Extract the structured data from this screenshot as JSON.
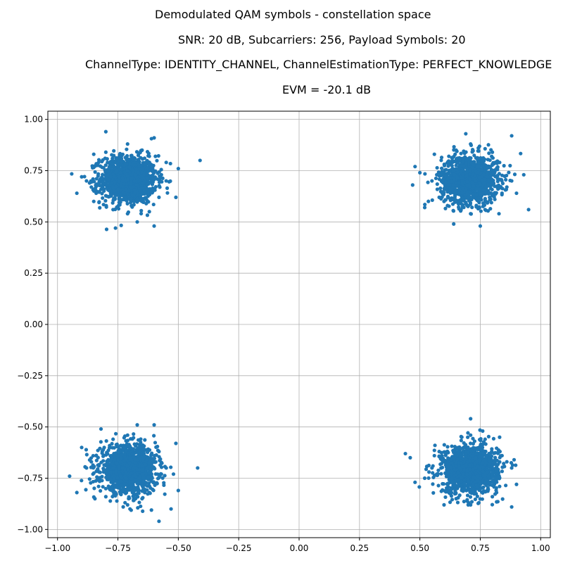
{
  "chart_data": {
    "type": "scatter",
    "title_lines": [
      "Demodulated QAM symbols - constellation space",
      "SNR: 20 dB, Subcarriers: 256, Payload Symbols: 20",
      "ChannelType: IDENTITY_CHANNEL, ChannelEstimationType: PERFECT_KNOWLEDGE",
      "EVM = -20.1 dB"
    ],
    "xlabel": "",
    "ylabel": "",
    "xlim": [
      -1.04,
      1.04
    ],
    "ylim": [
      -1.04,
      1.04
    ],
    "xticks": [
      -1.0,
      -0.75,
      -0.5,
      -0.25,
      0.0,
      0.25,
      0.5,
      0.75,
      1.0
    ],
    "yticks": [
      1.0,
      0.75,
      0.5,
      0.25,
      0.0,
      -0.25,
      -0.5,
      -0.75,
      -1.0
    ],
    "xtick_labels": [
      "−1.00",
      "−0.75",
      "−0.50",
      "−0.25",
      "0.00",
      "0.25",
      "0.50",
      "0.75",
      "1.00"
    ],
    "ytick_labels": [
      "1.00",
      "0.75",
      "0.50",
      "0.25",
      "0.00",
      "−0.25",
      "−0.50",
      "−0.75",
      "−1.00"
    ],
    "grid": true,
    "color": "#1f77b4",
    "series": [
      {
        "points": [
          [
            -0.707,
            0.707
          ],
          [
            -0.78,
            0.72
          ],
          [
            -0.65,
            0.69
          ],
          [
            -0.72,
            0.78
          ],
          [
            -0.69,
            0.63
          ],
          [
            -0.75,
            0.66
          ],
          [
            -0.66,
            0.76
          ],
          [
            -0.73,
            0.7
          ],
          [
            -0.68,
            0.73
          ],
          [
            -0.74,
            0.74
          ],
          [
            -0.8,
            0.94
          ],
          [
            -0.41,
            0.8
          ],
          [
            -0.92,
            0.64
          ],
          [
            -0.6,
            0.91
          ],
          [
            -0.76,
            0.47
          ],
          [
            -0.6,
            0.48
          ],
          [
            -0.85,
            0.83
          ],
          [
            -0.55,
            0.79
          ],
          [
            -0.62,
            0.55
          ],
          [
            -0.85,
            0.6
          ],
          [
            -0.71,
            0.88
          ],
          [
            -0.71,
            0.54
          ],
          [
            -0.55,
            0.7
          ],
          [
            -0.88,
            0.7
          ],
          [
            -0.65,
            0.85
          ],
          [
            -0.77,
            0.56
          ],
          [
            -0.58,
            0.62
          ],
          [
            -0.83,
            0.79
          ],
          [
            -0.62,
            0.82
          ],
          [
            -0.84,
            0.64
          ],
          [
            -0.5,
            0.76
          ],
          [
            -0.51,
            0.62
          ],
          [
            -0.9,
            0.72
          ],
          [
            -0.67,
            0.5
          ],
          [
            -0.8,
            0.84
          ],
          [
            -0.57,
            0.73
          ],
          [
            -0.86,
            0.67
          ],
          [
            -0.74,
            0.61
          ],
          [
            -0.68,
            0.81
          ],
          [
            -0.79,
            0.68
          ]
        ]
      },
      {
        "points": [
          [
            0.707,
            0.707
          ],
          [
            0.78,
            0.72
          ],
          [
            0.65,
            0.69
          ],
          [
            0.72,
            0.78
          ],
          [
            0.69,
            0.63
          ],
          [
            0.75,
            0.66
          ],
          [
            0.66,
            0.76
          ],
          [
            0.73,
            0.7
          ],
          [
            0.68,
            0.73
          ],
          [
            0.74,
            0.74
          ],
          [
            0.95,
            0.56
          ],
          [
            0.47,
            0.68
          ],
          [
            0.88,
            0.92
          ],
          [
            0.69,
            0.93
          ],
          [
            0.64,
            0.49
          ],
          [
            0.75,
            0.48
          ],
          [
            0.48,
            0.77
          ],
          [
            0.93,
            0.73
          ],
          [
            0.52,
            0.57
          ],
          [
            0.56,
            0.83
          ],
          [
            0.71,
            0.88
          ],
          [
            0.71,
            0.54
          ],
          [
            0.55,
            0.7
          ],
          [
            0.88,
            0.7
          ],
          [
            0.65,
            0.85
          ],
          [
            0.77,
            0.56
          ],
          [
            0.58,
            0.62
          ],
          [
            0.83,
            0.79
          ],
          [
            0.62,
            0.82
          ],
          [
            0.84,
            0.64
          ],
          [
            0.5,
            0.74
          ],
          [
            0.9,
            0.64
          ],
          [
            0.6,
            0.6
          ],
          [
            0.8,
            0.84
          ],
          [
            0.57,
            0.73
          ],
          [
            0.86,
            0.67
          ],
          [
            0.74,
            0.61
          ],
          [
            0.68,
            0.81
          ],
          [
            0.79,
            0.68
          ],
          [
            0.63,
            0.66
          ]
        ]
      },
      {
        "points": [
          [
            -0.707,
            -0.707
          ],
          [
            -0.78,
            -0.72
          ],
          [
            -0.65,
            -0.69
          ],
          [
            -0.72,
            -0.78
          ],
          [
            -0.69,
            -0.63
          ],
          [
            -0.75,
            -0.66
          ],
          [
            -0.66,
            -0.76
          ],
          [
            -0.73,
            -0.7
          ],
          [
            -0.68,
            -0.73
          ],
          [
            -0.74,
            -0.74
          ],
          [
            -0.95,
            -0.74
          ],
          [
            -0.42,
            -0.7
          ],
          [
            -0.58,
            -0.96
          ],
          [
            -0.67,
            -0.49
          ],
          [
            -0.6,
            -0.49
          ],
          [
            -0.92,
            -0.82
          ],
          [
            -0.53,
            -0.9
          ],
          [
            -0.51,
            -0.58
          ],
          [
            -0.9,
            -0.6
          ],
          [
            -0.82,
            -0.51
          ],
          [
            -0.71,
            -0.88
          ],
          [
            -0.71,
            -0.54
          ],
          [
            -0.55,
            -0.7
          ],
          [
            -0.88,
            -0.7
          ],
          [
            -0.65,
            -0.85
          ],
          [
            -0.77,
            -0.56
          ],
          [
            -0.58,
            -0.62
          ],
          [
            -0.83,
            -0.79
          ],
          [
            -0.62,
            -0.82
          ],
          [
            -0.84,
            -0.64
          ],
          [
            -0.5,
            -0.81
          ],
          [
            -0.52,
            -0.73
          ],
          [
            -0.86,
            -0.67
          ],
          [
            -0.74,
            -0.61
          ],
          [
            -0.68,
            -0.81
          ],
          [
            -0.79,
            -0.68
          ],
          [
            -0.63,
            -0.66
          ],
          [
            -0.8,
            -0.84
          ],
          [
            -0.57,
            -0.73
          ],
          [
            -0.7,
            -0.9
          ]
        ]
      },
      {
        "points": [
          [
            0.707,
            -0.707
          ],
          [
            0.78,
            -0.72
          ],
          [
            0.65,
            -0.69
          ],
          [
            0.72,
            -0.78
          ],
          [
            0.69,
            -0.63
          ],
          [
            0.75,
            -0.66
          ],
          [
            0.66,
            -0.76
          ],
          [
            0.73,
            -0.7
          ],
          [
            0.68,
            -0.73
          ],
          [
            0.74,
            -0.74
          ],
          [
            0.44,
            -0.63
          ],
          [
            0.71,
            -0.46
          ],
          [
            0.88,
            -0.89
          ],
          [
            0.46,
            -0.65
          ],
          [
            0.48,
            -0.77
          ],
          [
            0.76,
            -0.52
          ],
          [
            0.9,
            -0.78
          ],
          [
            0.6,
            -0.88
          ],
          [
            0.83,
            -0.55
          ],
          [
            0.89,
            -0.66
          ],
          [
            0.71,
            -0.88
          ],
          [
            0.71,
            -0.54
          ],
          [
            0.55,
            -0.7
          ],
          [
            0.88,
            -0.7
          ],
          [
            0.65,
            -0.85
          ],
          [
            0.77,
            -0.56
          ],
          [
            0.58,
            -0.62
          ],
          [
            0.83,
            -0.79
          ],
          [
            0.62,
            -0.82
          ],
          [
            0.84,
            -0.64
          ],
          [
            0.52,
            -0.75
          ],
          [
            0.56,
            -0.64
          ],
          [
            0.86,
            -0.67
          ],
          [
            0.74,
            -0.61
          ],
          [
            0.68,
            -0.81
          ],
          [
            0.79,
            -0.68
          ],
          [
            0.63,
            -0.66
          ],
          [
            0.8,
            -0.84
          ],
          [
            0.57,
            -0.73
          ],
          [
            0.7,
            -0.88
          ]
        ]
      }
    ]
  }
}
